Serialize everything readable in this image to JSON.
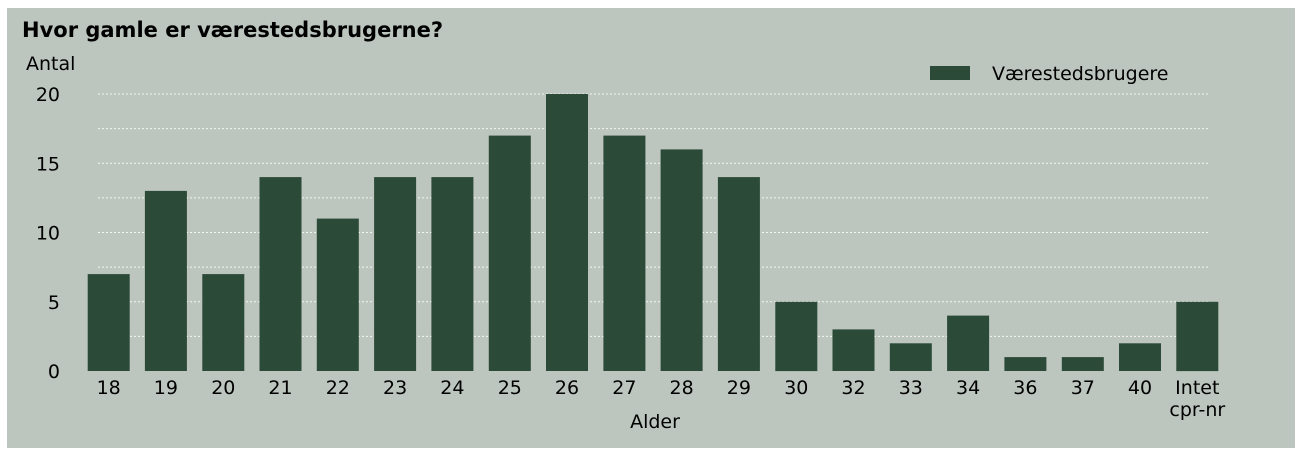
{
  "colors": {
    "background": "#bcc5be",
    "bar": "#2b4a37",
    "grid": "#f4f6f4"
  },
  "chart_data": {
    "type": "bar",
    "title": "Hvor gamle er værestedsbrugerne?",
    "xlabel": "Alder",
    "ylabel": "Antal",
    "categories": [
      "18",
      "19",
      "20",
      "21",
      "22",
      "23",
      "24",
      "25",
      "26",
      "27",
      "28",
      "29",
      "30",
      "32",
      "33",
      "34",
      "36",
      "37",
      "40",
      "Intet cpr-nr"
    ],
    "series": [
      {
        "name": "Værestedsbrugere",
        "values": [
          7,
          13,
          7,
          14,
          11,
          14,
          14,
          17,
          20,
          17,
          16,
          14,
          5,
          3,
          2,
          4,
          1,
          1,
          2,
          5
        ]
      }
    ],
    "ylim": [
      0,
      20
    ],
    "yticks": [
      0,
      5,
      10,
      15,
      20
    ],
    "grid": "horizontal dotted lines every 2.5",
    "legend": "top-right"
  }
}
